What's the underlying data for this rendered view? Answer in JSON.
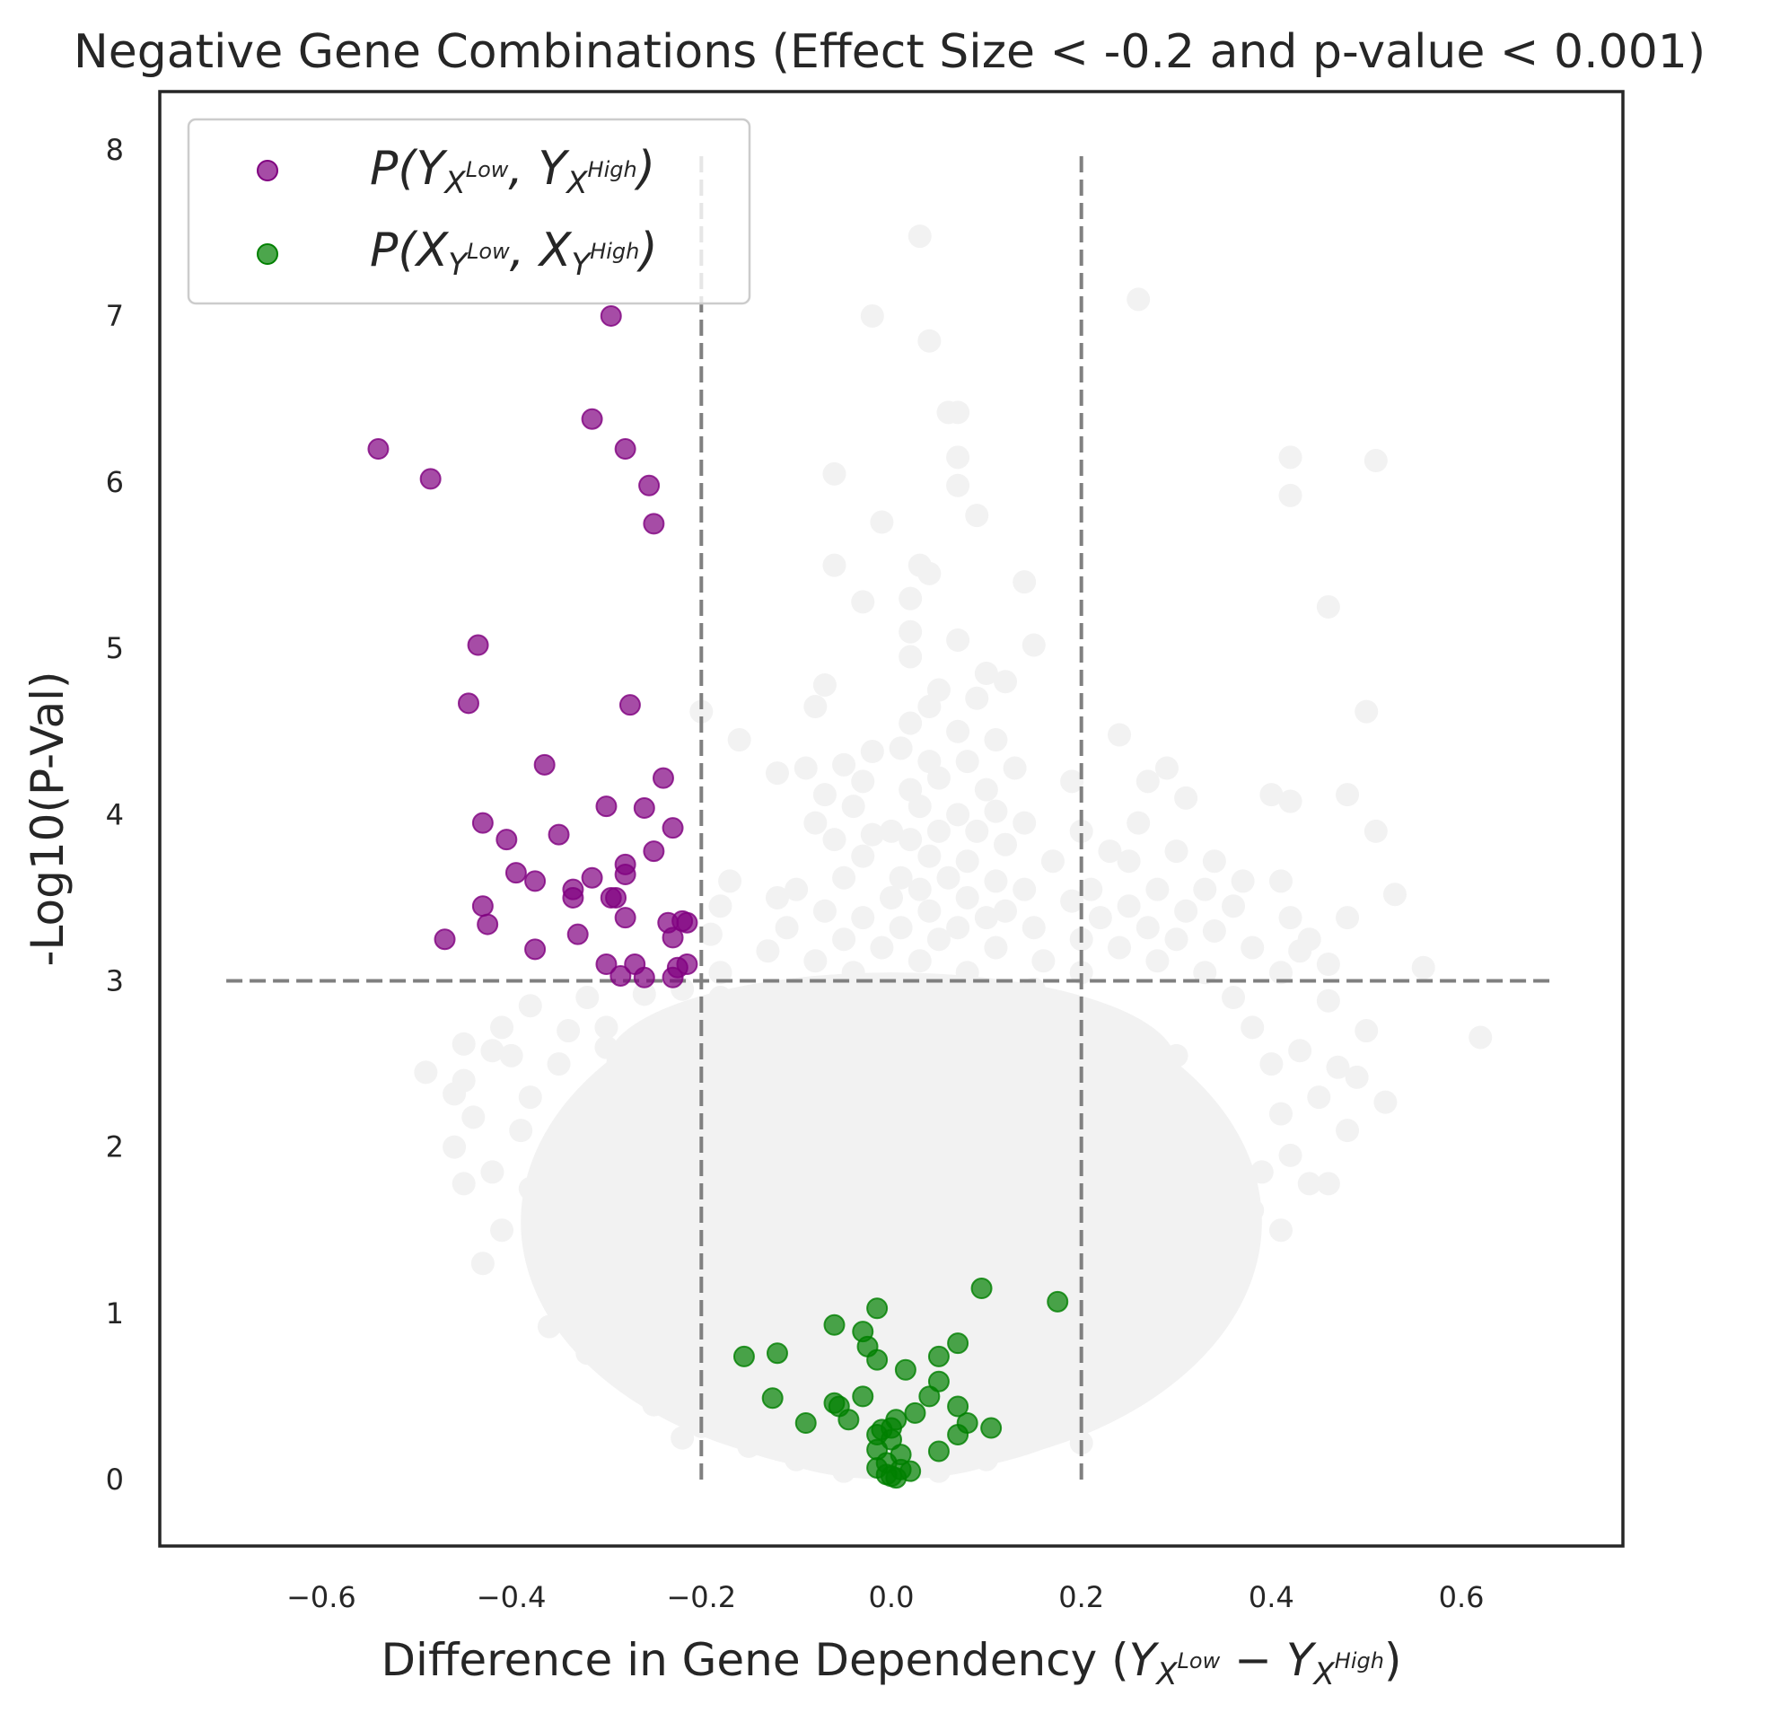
{
  "chart_data": {
    "type": "scatter",
    "title": "Negative Gene Combinations (Effect Size < -0.2 and p-value < 0.001)",
    "xlabel_prefix": "Difference in Gene Dependency ",
    "xlabel_math": {
      "a": "Y",
      "a_sub": "X",
      "a_sup": "Low",
      "op": "−",
      "b": "Y",
      "b_sub": "X",
      "b_sup": "High"
    },
    "ylabel": "-Log10(P-Val)",
    "xlim": [
      -0.77,
      0.77
    ],
    "ylim": [
      -0.4,
      8.35
    ],
    "xticks": [
      -0.6,
      -0.4,
      -0.2,
      0.0,
      0.2,
      0.4,
      0.6
    ],
    "xtick_labels": [
      "−0.6",
      "−0.4",
      "−0.2",
      "0.0",
      "0.2",
      "0.4",
      "0.6"
    ],
    "yticks": [
      0,
      1,
      2,
      3,
      4,
      5,
      6,
      7,
      8
    ],
    "ytick_labels": [
      "0",
      "1",
      "2",
      "3",
      "4",
      "5",
      "6",
      "7",
      "8"
    ],
    "grid": false,
    "legend_position": "upper-left",
    "thresholds": {
      "effect_size": [
        -0.2,
        0.2
      ],
      "effect_y_range": [
        0,
        8
      ],
      "neg_log10_p": 3,
      "p_x_range": [
        -0.7,
        0.7
      ],
      "line_color": "#808080"
    },
    "background_points": {
      "color": "#f2f2f2",
      "points": [
        [
          0.03,
          7.48
        ],
        [
          0.26,
          7.1
        ],
        [
          -0.02,
          7.0
        ],
        [
          0.04,
          6.85
        ],
        [
          0.06,
          6.42
        ],
        [
          0.07,
          6.42
        ],
        [
          0.07,
          6.15
        ],
        [
          0.42,
          6.15
        ],
        [
          0.51,
          6.13
        ],
        [
          -0.06,
          6.05
        ],
        [
          0.07,
          5.98
        ],
        [
          0.42,
          5.92
        ],
        [
          0.09,
          5.8
        ],
        [
          -0.01,
          5.76
        ],
        [
          -0.06,
          5.5
        ],
        [
          0.03,
          5.5
        ],
        [
          0.04,
          5.45
        ],
        [
          0.14,
          5.4
        ],
        [
          0.02,
          5.3
        ],
        [
          -0.03,
          5.28
        ],
        [
          0.46,
          5.25
        ],
        [
          0.02,
          5.1
        ],
        [
          0.07,
          5.05
        ],
        [
          0.15,
          5.02
        ],
        [
          0.02,
          4.95
        ],
        [
          0.1,
          4.85
        ],
        [
          -0.07,
          4.78
        ],
        [
          0.12,
          4.8
        ],
        [
          0.05,
          4.75
        ],
        [
          0.04,
          4.65
        ],
        [
          0.09,
          4.7
        ],
        [
          -0.08,
          4.65
        ],
        [
          -0.2,
          4.62
        ],
        [
          0.5,
          4.62
        ],
        [
          0.02,
          4.55
        ],
        [
          0.07,
          4.5
        ],
        [
          0.24,
          4.48
        ],
        [
          -0.16,
          4.45
        ],
        [
          0.11,
          4.45
        ],
        [
          0.01,
          4.4
        ],
        [
          -0.02,
          4.38
        ],
        [
          0.04,
          4.32
        ],
        [
          -0.05,
          4.3
        ],
        [
          0.08,
          4.32
        ],
        [
          -0.09,
          4.28
        ],
        [
          -0.12,
          4.25
        ],
        [
          0.13,
          4.28
        ],
        [
          0.29,
          4.28
        ],
        [
          0.05,
          4.22
        ],
        [
          -0.03,
          4.2
        ],
        [
          0.19,
          4.2
        ],
        [
          0.27,
          4.2
        ],
        [
          0.02,
          4.15
        ],
        [
          0.1,
          4.15
        ],
        [
          -0.07,
          4.12
        ],
        [
          0.31,
          4.1
        ],
        [
          0.4,
          4.12
        ],
        [
          0.42,
          4.08
        ],
        [
          0.48,
          4.12
        ],
        [
          0.03,
          4.05
        ],
        [
          -0.04,
          4.05
        ],
        [
          0.07,
          4.0
        ],
        [
          0.11,
          4.02
        ],
        [
          -0.08,
          3.95
        ],
        [
          0.14,
          3.95
        ],
        [
          0.26,
          3.95
        ],
        [
          0.0,
          3.9
        ],
        [
          -0.02,
          3.88
        ],
        [
          0.05,
          3.9
        ],
        [
          0.09,
          3.9
        ],
        [
          0.2,
          3.9
        ],
        [
          0.51,
          3.9
        ],
        [
          -0.06,
          3.85
        ],
        [
          0.02,
          3.85
        ],
        [
          0.12,
          3.82
        ],
        [
          0.23,
          3.78
        ],
        [
          0.3,
          3.78
        ],
        [
          -0.03,
          3.75
        ],
        [
          0.04,
          3.75
        ],
        [
          0.08,
          3.72
        ],
        [
          0.17,
          3.72
        ],
        [
          0.25,
          3.72
        ],
        [
          0.34,
          3.72
        ],
        [
          -0.17,
          3.6
        ],
        [
          -0.05,
          3.62
        ],
        [
          0.01,
          3.62
        ],
        [
          0.06,
          3.62
        ],
        [
          0.11,
          3.6
        ],
        [
          0.37,
          3.6
        ],
        [
          0.41,
          3.6
        ],
        [
          -0.1,
          3.55
        ],
        [
          0.03,
          3.55
        ],
        [
          0.14,
          3.55
        ],
        [
          0.21,
          3.55
        ],
        [
          0.28,
          3.55
        ],
        [
          0.33,
          3.55
        ],
        [
          0.53,
          3.52
        ],
        [
          -0.12,
          3.5
        ],
        [
          -0.18,
          3.45
        ],
        [
          0.0,
          3.5
        ],
        [
          0.08,
          3.5
        ],
        [
          0.19,
          3.48
        ],
        [
          0.25,
          3.45
        ],
        [
          0.36,
          3.45
        ],
        [
          -0.07,
          3.42
        ],
        [
          0.04,
          3.42
        ],
        [
          0.12,
          3.42
        ],
        [
          0.31,
          3.42
        ],
        [
          -0.03,
          3.38
        ],
        [
          0.1,
          3.38
        ],
        [
          0.22,
          3.38
        ],
        [
          0.42,
          3.38
        ],
        [
          0.48,
          3.38
        ],
        [
          -0.11,
          3.32
        ],
        [
          0.01,
          3.32
        ],
        [
          0.07,
          3.32
        ],
        [
          0.15,
          3.32
        ],
        [
          0.27,
          3.32
        ],
        [
          0.34,
          3.3
        ],
        [
          -0.19,
          3.28
        ],
        [
          -0.05,
          3.25
        ],
        [
          0.05,
          3.25
        ],
        [
          0.2,
          3.25
        ],
        [
          0.3,
          3.25
        ],
        [
          0.44,
          3.25
        ],
        [
          -0.13,
          3.18
        ],
        [
          -0.01,
          3.2
        ],
        [
          0.11,
          3.2
        ],
        [
          0.24,
          3.2
        ],
        [
          0.38,
          3.2
        ],
        [
          0.43,
          3.18
        ],
        [
          -0.08,
          3.12
        ],
        [
          0.03,
          3.12
        ],
        [
          0.16,
          3.12
        ],
        [
          0.28,
          3.12
        ],
        [
          0.46,
          3.1
        ],
        [
          0.56,
          3.08
        ],
        [
          -0.18,
          3.05
        ],
        [
          -0.04,
          3.05
        ],
        [
          0.08,
          3.05
        ],
        [
          0.2,
          3.05
        ],
        [
          0.33,
          3.05
        ],
        [
          0.41,
          3.05
        ],
        [
          -0.22,
          2.95
        ],
        [
          -0.26,
          2.92
        ],
        [
          -0.32,
          2.9
        ],
        [
          -0.38,
          2.85
        ],
        [
          0.36,
          2.9
        ],
        [
          0.46,
          2.88
        ],
        [
          -0.41,
          2.72
        ],
        [
          -0.3,
          2.72
        ],
        [
          -0.34,
          2.7
        ],
        [
          0.38,
          2.72
        ],
        [
          0.5,
          2.7
        ],
        [
          0.62,
          2.66
        ],
        [
          -0.45,
          2.62
        ],
        [
          -0.42,
          2.58
        ],
        [
          0.43,
          2.58
        ],
        [
          -0.35,
          2.5
        ],
        [
          0.47,
          2.48
        ],
        [
          -0.49,
          2.45
        ],
        [
          -0.45,
          2.4
        ],
        [
          0.49,
          2.42
        ],
        [
          -0.46,
          2.32
        ],
        [
          -0.38,
          2.3
        ],
        [
          0.45,
          2.3
        ],
        [
          0.52,
          2.27
        ],
        [
          -0.44,
          2.18
        ],
        [
          0.41,
          2.2
        ],
        [
          -0.39,
          2.1
        ],
        [
          0.48,
          2.1
        ],
        [
          -0.46,
          2.0
        ],
        [
          -0.36,
          1.95
        ],
        [
          0.42,
          1.95
        ],
        [
          -0.42,
          1.85
        ],
        [
          0.39,
          1.85
        ],
        [
          -0.45,
          1.78
        ],
        [
          -0.38,
          1.75
        ],
        [
          0.44,
          1.78
        ],
        [
          0.46,
          1.78
        ],
        [
          -0.34,
          1.62
        ],
        [
          0.38,
          1.62
        ],
        [
          -0.41,
          1.5
        ],
        [
          0.41,
          1.5
        ],
        [
          -0.43,
          1.3
        ],
        [
          0.37,
          1.32
        ],
        [
          -0.36,
          1.2
        ],
        [
          0.35,
          1.2
        ],
        [
          -0.31,
          1.02
        ],
        [
          0.29,
          1.02
        ],
        [
          -0.36,
          0.92
        ],
        [
          0.33,
          0.88
        ],
        [
          -0.32,
          0.76
        ],
        [
          0.27,
          0.75
        ],
        [
          -0.29,
          0.67
        ],
        [
          0.25,
          0.65
        ],
        [
          -0.27,
          0.58
        ],
        [
          0.24,
          0.55
        ],
        [
          -0.25,
          0.45
        ],
        [
          0.23,
          0.48
        ],
        [
          -0.2,
          0.32
        ],
        [
          0.19,
          0.35
        ],
        [
          -0.15,
          0.2
        ],
        [
          0.14,
          0.22
        ],
        [
          -0.1,
          0.12
        ],
        [
          0.1,
          0.12
        ],
        [
          -0.05,
          0.05
        ],
        [
          0.05,
          0.05
        ],
        [
          0.0,
          0.02
        ],
        [
          -0.22,
          0.25
        ],
        [
          0.2,
          0.22
        ],
        [
          -0.33,
          1.45
        ],
        [
          0.3,
          1.45
        ],
        [
          -0.4,
          2.55
        ],
        [
          0.4,
          2.5
        ],
        [
          -0.18,
          2.9
        ],
        [
          0.15,
          2.95
        ],
        [
          0.0,
          2.98
        ],
        [
          -0.28,
          2.2
        ],
        [
          0.28,
          2.2
        ],
        [
          -0.15,
          2.4
        ],
        [
          0.15,
          2.45
        ],
        [
          -0.1,
          1.5
        ],
        [
          0.1,
          1.5
        ],
        [
          -0.2,
          1.9
        ],
        [
          0.2,
          1.9
        ],
        [
          0.0,
          1.9
        ],
        [
          -0.05,
          2.6
        ],
        [
          0.05,
          2.6
        ],
        [
          0.0,
          0.9
        ],
        [
          -0.12,
          0.85
        ],
        [
          0.12,
          0.85
        ],
        [
          -0.3,
          2.6
        ],
        [
          0.3,
          2.55
        ]
      ],
      "clusters": [
        {
          "cx": 0.0,
          "cy": 1.55,
          "rx": 0.39,
          "ry": 1.5
        },
        {
          "cx": 0.0,
          "cy": 2.5,
          "rx": 0.3,
          "ry": 0.55
        },
        {
          "cx": 0.0,
          "cy": 0.75,
          "rx": 0.26,
          "ry": 0.72
        },
        {
          "cx": 0.0,
          "cy": 0.3,
          "rx": 0.15,
          "ry": 0.3
        }
      ]
    },
    "series": [
      {
        "name": "P(Y_{X^{Low}}, Y_{X^{High}})",
        "legend": {
          "pre": "P(",
          "a": "Y",
          "a_sub": "X",
          "a_sup": "Low",
          "mid": ", ",
          "b": "Y",
          "b_sub": "X",
          "b_sup": "High",
          "post": ")"
        },
        "color": "#800080",
        "points": [
          [
            -0.54,
            6.2
          ],
          [
            -0.485,
            6.02
          ],
          [
            -0.295,
            7.0
          ],
          [
            -0.315,
            6.38
          ],
          [
            -0.28,
            6.2
          ],
          [
            -0.255,
            5.98
          ],
          [
            -0.25,
            5.75
          ],
          [
            -0.435,
            5.02
          ],
          [
            -0.445,
            4.67
          ],
          [
            -0.275,
            4.66
          ],
          [
            -0.365,
            4.3
          ],
          [
            -0.24,
            4.22
          ],
          [
            -0.3,
            4.05
          ],
          [
            -0.26,
            4.04
          ],
          [
            -0.43,
            3.95
          ],
          [
            -0.23,
            3.92
          ],
          [
            -0.405,
            3.85
          ],
          [
            -0.35,
            3.88
          ],
          [
            -0.25,
            3.78
          ],
          [
            -0.28,
            3.7
          ],
          [
            -0.395,
            3.65
          ],
          [
            -0.375,
            3.6
          ],
          [
            -0.315,
            3.62
          ],
          [
            -0.28,
            3.64
          ],
          [
            -0.335,
            3.55
          ],
          [
            -0.335,
            3.5
          ],
          [
            -0.295,
            3.5
          ],
          [
            -0.29,
            3.5
          ],
          [
            -0.43,
            3.45
          ],
          [
            -0.28,
            3.38
          ],
          [
            -0.235,
            3.35
          ],
          [
            -0.22,
            3.36
          ],
          [
            -0.215,
            3.35
          ],
          [
            -0.425,
            3.34
          ],
          [
            -0.33,
            3.28
          ],
          [
            -0.47,
            3.25
          ],
          [
            -0.23,
            3.26
          ],
          [
            -0.375,
            3.19
          ],
          [
            -0.3,
            3.1
          ],
          [
            -0.27,
            3.1
          ],
          [
            -0.225,
            3.08
          ],
          [
            -0.215,
            3.1
          ],
          [
            -0.285,
            3.03
          ],
          [
            -0.26,
            3.02
          ],
          [
            -0.23,
            3.02
          ]
        ]
      },
      {
        "name": "P(X_{Y^{Low}}, X_{Y^{High}})",
        "legend": {
          "pre": "P(",
          "a": "X",
          "a_sub": "Y",
          "a_sup": "Low",
          "mid": ", ",
          "b": "X",
          "b_sub": "Y",
          "b_sup": "High",
          "post": ")"
        },
        "color": "#008000",
        "points": [
          [
            0.095,
            1.15
          ],
          [
            0.175,
            1.07
          ],
          [
            -0.015,
            1.03
          ],
          [
            -0.06,
            0.93
          ],
          [
            -0.03,
            0.89
          ],
          [
            0.07,
            0.82
          ],
          [
            -0.025,
            0.8
          ],
          [
            -0.155,
            0.74
          ],
          [
            -0.12,
            0.76
          ],
          [
            0.05,
            0.74
          ],
          [
            -0.015,
            0.72
          ],
          [
            0.015,
            0.66
          ],
          [
            0.05,
            0.59
          ],
          [
            -0.125,
            0.49
          ],
          [
            -0.03,
            0.5
          ],
          [
            0.04,
            0.5
          ],
          [
            -0.06,
            0.46
          ],
          [
            -0.055,
            0.44
          ],
          [
            0.07,
            0.44
          ],
          [
            -0.045,
            0.36
          ],
          [
            0.025,
            0.4
          ],
          [
            0.005,
            0.36
          ],
          [
            -0.09,
            0.34
          ],
          [
            0.08,
            0.34
          ],
          [
            0.105,
            0.31
          ],
          [
            -0.01,
            0.3
          ],
          [
            0.0,
            0.31
          ],
          [
            -0.015,
            0.27
          ],
          [
            0.07,
            0.27
          ],
          [
            0.0,
            0.24
          ],
          [
            -0.015,
            0.18
          ],
          [
            0.05,
            0.17
          ],
          [
            0.01,
            0.15
          ],
          [
            -0.005,
            0.1
          ],
          [
            0.01,
            0.06
          ],
          [
            -0.015,
            0.07
          ],
          [
            0.02,
            0.05
          ],
          [
            0.0,
            0.02
          ],
          [
            -0.005,
            0.03
          ],
          [
            0.005,
            0.01
          ]
        ]
      }
    ]
  }
}
